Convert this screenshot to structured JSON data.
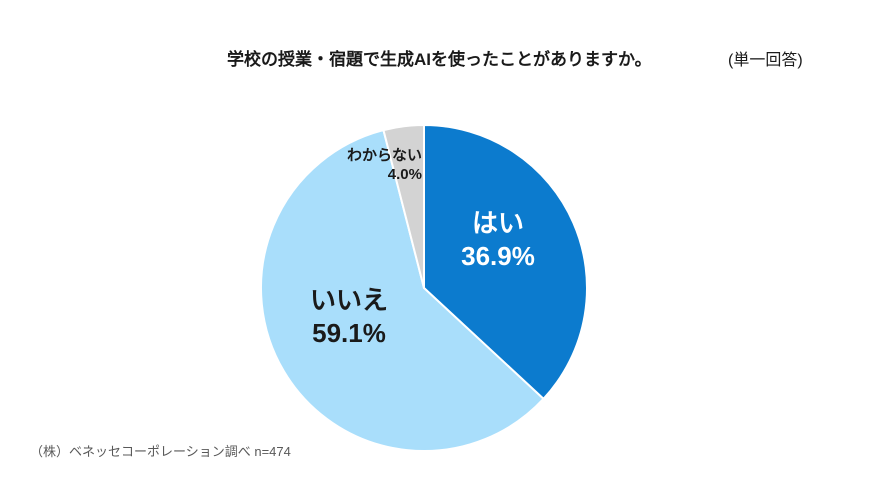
{
  "page": {
    "background": "#ffffff"
  },
  "chart_data": {
    "type": "pie",
    "title": "学校の授業・宿題で生成AIを使ったことがありますか。",
    "note": "(単一回答)",
    "legend": "none (labels drawn on slices)",
    "start": "12 o'clock, clockwise",
    "slices": [
      {
        "id": "yes",
        "label": "はい",
        "value": 36.9,
        "pct_label": "36.9%",
        "color": "#0c7bce",
        "text_color": "#ffffff"
      },
      {
        "id": "no",
        "label": "いいえ",
        "value": 59.1,
        "pct_label": "59.1%",
        "color": "#a9defb",
        "text_color": "#1a1a1a"
      },
      {
        "id": "unknown",
        "label": "わからない",
        "value": 4.0,
        "pct_label": "4.0%",
        "color": "#d3d3d3",
        "text_color": "#1a1a1a"
      }
    ],
    "slice_border_color": "#ffffff",
    "sample_size": "n=474"
  },
  "footer": {
    "source": "（株）ベネッセコーポレーション調べ n=474"
  }
}
